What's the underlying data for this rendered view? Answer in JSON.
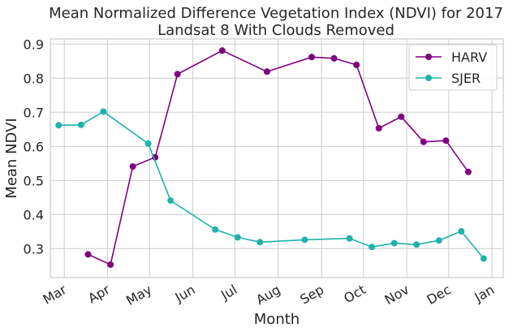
{
  "chart_data": {
    "type": "line",
    "title": [
      "Mean Normalized Difference Vegetation Index (NDVI) for 2017",
      "Landsat 8 With Clouds Removed"
    ],
    "xlabel": "Month",
    "ylabel": "Mean NDVI",
    "xlim": [
      "2017-02-19",
      "2018-01-09"
    ],
    "ylim": [
      0.215,
      0.915
    ],
    "grid": true,
    "legend": "top-right",
    "x_ticks": [
      {
        "date": "2017-03-01",
        "label": "Mar"
      },
      {
        "date": "2017-04-01",
        "label": "Apr"
      },
      {
        "date": "2017-05-01",
        "label": "May"
      },
      {
        "date": "2017-06-01",
        "label": "Jun"
      },
      {
        "date": "2017-07-01",
        "label": "Jul"
      },
      {
        "date": "2017-08-01",
        "label": "Aug"
      },
      {
        "date": "2017-09-01",
        "label": "Sep"
      },
      {
        "date": "2017-10-01",
        "label": "Oct"
      },
      {
        "date": "2017-11-01",
        "label": "Nov"
      },
      {
        "date": "2017-12-01",
        "label": "Dec"
      },
      {
        "date": "2018-01-01",
        "label": "Jan"
      }
    ],
    "y_ticks": [
      {
        "value": 0.3,
        "label": "0.3"
      },
      {
        "value": 0.4,
        "label": "0.4"
      },
      {
        "value": 0.5,
        "label": "0.5"
      },
      {
        "value": 0.6,
        "label": "0.6"
      },
      {
        "value": 0.7,
        "label": "0.7"
      },
      {
        "value": 0.8,
        "label": "0.8"
      },
      {
        "value": 0.9,
        "label": "0.9"
      }
    ],
    "series": [
      {
        "name": "HARV",
        "color": "#800080",
        "points": [
          {
            "x": "2017-03-18",
            "y": 0.283
          },
          {
            "x": "2017-04-03",
            "y": 0.253
          },
          {
            "x": "2017-04-19",
            "y": 0.541
          },
          {
            "x": "2017-05-05",
            "y": 0.568
          },
          {
            "x": "2017-05-21",
            "y": 0.812
          },
          {
            "x": "2017-06-22",
            "y": 0.881
          },
          {
            "x": "2017-07-24",
            "y": 0.819
          },
          {
            "x": "2017-08-25",
            "y": 0.862
          },
          {
            "x": "2017-09-10",
            "y": 0.858
          },
          {
            "x": "2017-09-26",
            "y": 0.839
          },
          {
            "x": "2017-10-12",
            "y": 0.653
          },
          {
            "x": "2017-10-28",
            "y": 0.687
          },
          {
            "x": "2017-11-13",
            "y": 0.613
          },
          {
            "x": "2017-11-29",
            "y": 0.617
          },
          {
            "x": "2017-12-15",
            "y": 0.525
          }
        ]
      },
      {
        "name": "SJER",
        "color": "#20B2AA",
        "points": [
          {
            "x": "2017-02-25",
            "y": 0.662
          },
          {
            "x": "2017-03-13",
            "y": 0.663
          },
          {
            "x": "2017-03-29",
            "y": 0.702
          },
          {
            "x": "2017-04-30",
            "y": 0.608
          },
          {
            "x": "2017-05-16",
            "y": 0.441
          },
          {
            "x": "2017-06-17",
            "y": 0.356
          },
          {
            "x": "2017-07-03",
            "y": 0.333
          },
          {
            "x": "2017-07-19",
            "y": 0.319
          },
          {
            "x": "2017-08-20",
            "y": 0.326
          },
          {
            "x": "2017-09-21",
            "y": 0.33
          },
          {
            "x": "2017-10-07",
            "y": 0.305
          },
          {
            "x": "2017-10-23",
            "y": 0.316
          },
          {
            "x": "2017-11-08",
            "y": 0.312
          },
          {
            "x": "2017-11-24",
            "y": 0.324
          },
          {
            "x": "2017-12-10",
            "y": 0.351
          },
          {
            "x": "2017-12-26",
            "y": 0.271
          }
        ]
      }
    ]
  }
}
